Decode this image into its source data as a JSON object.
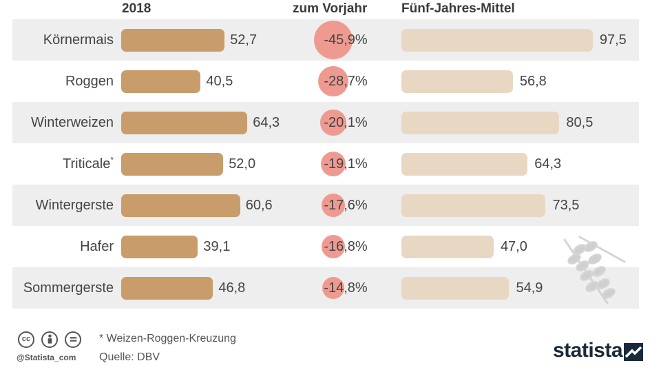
{
  "headers": {
    "col_2018": "2018",
    "col_change": "zum Vorjahr",
    "col_avg": "Fünf-Jahres-Mittel"
  },
  "footer": {
    "footnote": "* Weizen-Roggen-Kreuzung",
    "source": "Quelle: DBV",
    "handle": "@Statista_com",
    "brand": "statista"
  },
  "icons": [
    "cc-icon",
    "by-icon",
    "nd-icon",
    "wheat-icon",
    "statista-logo-icon"
  ],
  "colors": {
    "bar_2018": "#c89d6b",
    "bar_avg": "#e8d8c3",
    "circle": "#ef9a90",
    "row_shade": "#eeeeee"
  },
  "chart_data": {
    "type": "bar",
    "categories": [
      "Körnermais",
      "Roggen",
      "Winterweizen",
      "Triticale",
      "Wintergerste",
      "Hafer",
      "Sommergerste"
    ],
    "category_markers": [
      "",
      "",
      "",
      "*",
      "",
      "",
      ""
    ],
    "series": [
      {
        "name": "2018",
        "values": [
          52.7,
          40.5,
          64.3,
          52.0,
          60.6,
          39.1,
          46.8
        ],
        "labels": [
          "52,7",
          "40,5",
          "64,3",
          "52,0",
          "60,6",
          "39,1",
          "46,8"
        ]
      },
      {
        "name": "zum Vorjahr",
        "values": [
          -45.9,
          -28.7,
          -20.1,
          -19.1,
          -17.6,
          -16.8,
          -14.8
        ],
        "labels": [
          "-45,9%",
          "-28,7%",
          "-20,1%",
          "-19,1%",
          "-17,6%",
          "-16,8%",
          "-14,8%"
        ]
      },
      {
        "name": "Fünf-Jahres-Mittel",
        "values": [
          97.5,
          56.8,
          80.5,
          64.3,
          73.5,
          47.0,
          54.9
        ],
        "labels": [
          "97,5",
          "56,8",
          "80,5",
          "64,3",
          "73,5",
          "47,0",
          "54,9"
        ]
      }
    ],
    "grid": false
  }
}
